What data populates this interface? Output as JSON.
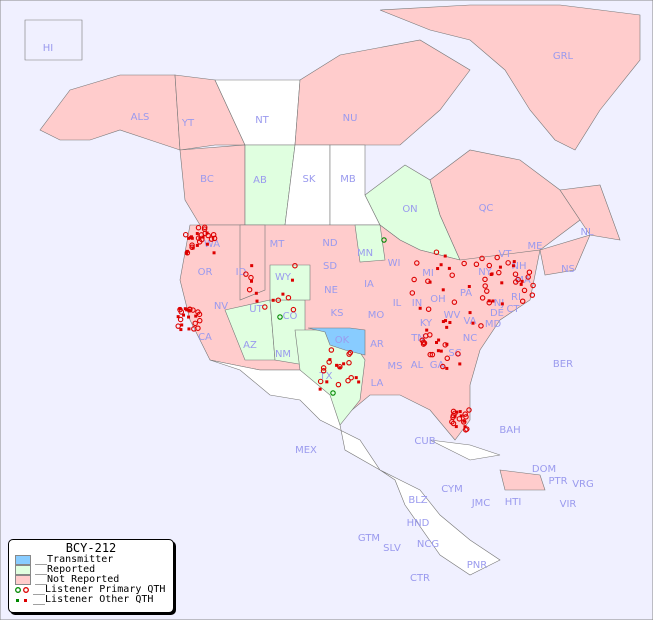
{
  "map_title": "BCY-212",
  "colors": {
    "background": "#f0f0ff",
    "transmitter": "#88ccff",
    "reported": "#e0ffe0",
    "not_reported": "#ffcccc",
    "no_data": "#ffffff",
    "label": "#9a9aee",
    "primary_qth": "#008800",
    "listener": "#dd0000"
  },
  "legend": {
    "title": "BCY-212",
    "items": [
      {
        "label": "__Transmitter",
        "swatch": "transmitter"
      },
      {
        "label": "__Reported",
        "swatch": "reported"
      },
      {
        "label": "__Not Reported",
        "swatch": "not_reported"
      },
      {
        "label": "__Listener Primary QTH",
        "swatch": "primary"
      },
      {
        "label": "__Listener Other QTH",
        "swatch": "other"
      }
    ]
  },
  "region_labels": [
    "HI",
    "ALS",
    "YT",
    "NT",
    "NU",
    "GRL",
    "BC",
    "AB",
    "SK",
    "MB",
    "ON",
    "QC",
    "NL",
    "NS",
    "WA",
    "OR",
    "ID",
    "MT",
    "WY",
    "ND",
    "SD",
    "NE",
    "MN",
    "WI",
    "IA",
    "IL",
    "IN",
    "OH",
    "MI",
    "PA",
    "NY",
    "VT",
    "NH",
    "ME",
    "MA",
    "CT",
    "RI",
    "NJ",
    "DE",
    "MD",
    "WV",
    "VA",
    "KY",
    "TN",
    "NC",
    "SC",
    "GA",
    "AL",
    "MS",
    "LA",
    "AR",
    "MO",
    "KS",
    "OK",
    "TX",
    "NM",
    "CO",
    "UT",
    "AZ",
    "NV",
    "CA",
    "BER",
    "BAH",
    "CUB",
    "MEX",
    "DOM",
    "PTR",
    "VRG",
    "VIR",
    "HTI",
    "JMC",
    "CYM",
    "BLZ",
    "HND",
    "GTM",
    "SLV",
    "NCG",
    "CTR",
    "PNR"
  ],
  "status": {
    "transmitter": [
      "OK"
    ],
    "reported": [
      "AB",
      "ON",
      "MN",
      "CO",
      "NM",
      "AZ",
      "TX",
      "UT?"
    ]
  }
}
